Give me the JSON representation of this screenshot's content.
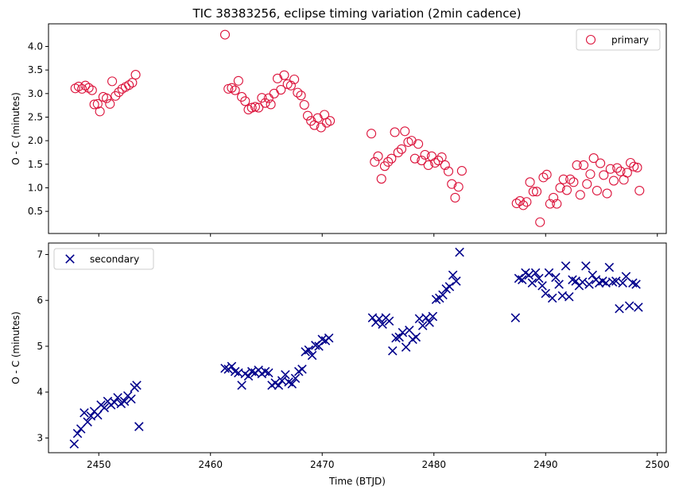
{
  "title": "TIC 38383256, eclipse timing variation (2min cadence)",
  "colors": {
    "primary": "#dc143c",
    "secondary": "#00008b"
  },
  "chart_data": [
    {
      "type": "scatter",
      "panel": "top",
      "ylabel": "O - C (minutes)",
      "xlabel": "",
      "xlim": [
        2445.5,
        2500.8
      ],
      "ylim": [
        0.03,
        4.48
      ],
      "yticks": [
        0.5,
        1.0,
        1.5,
        2.0,
        2.5,
        3.0,
        3.5,
        4.0
      ],
      "ytick_labels": [
        "0.5",
        "1.0",
        "1.5",
        "2.0",
        "2.5",
        "3.0",
        "3.5",
        "4.0"
      ],
      "xticks": [
        2450,
        2460,
        2470,
        2480,
        2490,
        2500
      ],
      "legend_position": "top-right",
      "series": [
        {
          "name": "primary",
          "marker": "open-circle",
          "color": "#dc143c",
          "points": [
            [
              2447.9,
              3.11
            ],
            [
              2448.2,
              3.15
            ],
            [
              2448.5,
              3.1
            ],
            [
              2448.8,
              3.17
            ],
            [
              2449.1,
              3.12
            ],
            [
              2449.4,
              3.07
            ],
            [
              2449.6,
              2.77
            ],
            [
              2449.9,
              2.78
            ],
            [
              2450.1,
              2.62
            ],
            [
              2450.4,
              2.93
            ],
            [
              2450.7,
              2.9
            ],
            [
              2451.0,
              2.78
            ],
            [
              2451.2,
              3.26
            ],
            [
              2451.5,
              2.95
            ],
            [
              2451.8,
              3.03
            ],
            [
              2452.1,
              3.1
            ],
            [
              2452.4,
              3.14
            ],
            [
              2452.7,
              3.18
            ],
            [
              2453.0,
              3.23
            ],
            [
              2453.3,
              3.4
            ],
            [
              2461.3,
              4.25
            ],
            [
              2461.6,
              3.1
            ],
            [
              2461.9,
              3.12
            ],
            [
              2462.2,
              3.07
            ],
            [
              2462.5,
              3.27
            ],
            [
              2462.8,
              2.93
            ],
            [
              2463.1,
              2.84
            ],
            [
              2463.4,
              2.66
            ],
            [
              2463.7,
              2.7
            ],
            [
              2464.0,
              2.72
            ],
            [
              2464.3,
              2.7
            ],
            [
              2464.6,
              2.91
            ],
            [
              2464.9,
              2.8
            ],
            [
              2465.2,
              2.9
            ],
            [
              2465.4,
              2.77
            ],
            [
              2465.7,
              3.0
            ],
            [
              2466.0,
              3.32
            ],
            [
              2466.3,
              3.08
            ],
            [
              2466.6,
              3.39
            ],
            [
              2466.9,
              3.2
            ],
            [
              2467.2,
              3.17
            ],
            [
              2467.5,
              3.3
            ],
            [
              2467.8,
              3.02
            ],
            [
              2468.1,
              2.96
            ],
            [
              2468.4,
              2.76
            ],
            [
              2468.7,
              2.53
            ],
            [
              2469.0,
              2.42
            ],
            [
              2469.3,
              2.33
            ],
            [
              2469.6,
              2.48
            ],
            [
              2469.9,
              2.28
            ],
            [
              2470.2,
              2.55
            ],
            [
              2470.4,
              2.38
            ],
            [
              2470.7,
              2.42
            ],
            [
              2474.4,
              2.15
            ],
            [
              2474.7,
              1.55
            ],
            [
              2475.0,
              1.67
            ],
            [
              2475.3,
              1.19
            ],
            [
              2475.6,
              1.46
            ],
            [
              2475.9,
              1.55
            ],
            [
              2476.2,
              1.62
            ],
            [
              2476.5,
              2.18
            ],
            [
              2476.8,
              1.75
            ],
            [
              2477.1,
              1.82
            ],
            [
              2477.4,
              2.2
            ],
            [
              2477.7,
              1.97
            ],
            [
              2478.0,
              2.0
            ],
            [
              2478.3,
              1.62
            ],
            [
              2478.6,
              1.93
            ],
            [
              2478.9,
              1.58
            ],
            [
              2479.2,
              1.7
            ],
            [
              2479.5,
              1.48
            ],
            [
              2479.8,
              1.67
            ],
            [
              2480.1,
              1.53
            ],
            [
              2480.4,
              1.58
            ],
            [
              2480.7,
              1.65
            ],
            [
              2481.0,
              1.48
            ],
            [
              2481.3,
              1.35
            ],
            [
              2481.6,
              1.08
            ],
            [
              2481.9,
              0.79
            ],
            [
              2482.2,
              1.02
            ],
            [
              2482.5,
              1.36
            ],
            [
              2487.4,
              0.67
            ],
            [
              2487.7,
              0.72
            ],
            [
              2488.0,
              0.63
            ],
            [
              2488.3,
              0.7
            ],
            [
              2488.6,
              1.12
            ],
            [
              2488.9,
              0.92
            ],
            [
              2489.2,
              0.92
            ],
            [
              2489.5,
              0.27
            ],
            [
              2489.8,
              1.22
            ],
            [
              2490.1,
              1.28
            ],
            [
              2490.4,
              0.66
            ],
            [
              2490.7,
              0.79
            ],
            [
              2491.0,
              0.66
            ],
            [
              2491.3,
              1.0
            ],
            [
              2491.6,
              1.18
            ],
            [
              2491.9,
              0.95
            ],
            [
              2492.2,
              1.18
            ],
            [
              2492.5,
              1.12
            ],
            [
              2492.8,
              1.48
            ],
            [
              2493.1,
              0.85
            ],
            [
              2493.4,
              1.48
            ],
            [
              2493.7,
              1.08
            ],
            [
              2494.0,
              1.29
            ],
            [
              2494.3,
              1.63
            ],
            [
              2494.6,
              0.94
            ],
            [
              2494.9,
              1.52
            ],
            [
              2495.2,
              1.27
            ],
            [
              2495.5,
              0.88
            ],
            [
              2495.8,
              1.4
            ],
            [
              2496.1,
              1.15
            ],
            [
              2496.4,
              1.42
            ],
            [
              2496.7,
              1.35
            ],
            [
              2497.0,
              1.17
            ],
            [
              2497.3,
              1.32
            ],
            [
              2497.6,
              1.53
            ],
            [
              2497.9,
              1.45
            ],
            [
              2498.2,
              1.43
            ],
            [
              2498.4,
              0.94
            ]
          ]
        }
      ]
    },
    {
      "type": "scatter",
      "panel": "bottom",
      "ylabel": "O - C (minutes)",
      "xlabel": "Time (BTJD)",
      "xlim": [
        2445.5,
        2500.8
      ],
      "ylim": [
        2.68,
        7.25
      ],
      "yticks": [
        3,
        4,
        5,
        6,
        7
      ],
      "ytick_labels": [
        "3",
        "4",
        "5",
        "6",
        "7"
      ],
      "xticks": [
        2450,
        2460,
        2470,
        2480,
        2490,
        2500
      ],
      "xtick_labels": [
        "2450",
        "2460",
        "2470",
        "2480",
        "2490",
        "2500"
      ],
      "legend_position": "top-left",
      "series": [
        {
          "name": "secondary",
          "marker": "x",
          "color": "#00008b",
          "points": [
            [
              2447.8,
              2.87
            ],
            [
              2448.1,
              3.1
            ],
            [
              2448.4,
              3.2
            ],
            [
              2448.7,
              3.55
            ],
            [
              2449.0,
              3.35
            ],
            [
              2449.3,
              3.48
            ],
            [
              2449.6,
              3.58
            ],
            [
              2449.9,
              3.5
            ],
            [
              2450.2,
              3.72
            ],
            [
              2450.5,
              3.66
            ],
            [
              2450.8,
              3.8
            ],
            [
              2451.1,
              3.72
            ],
            [
              2451.4,
              3.78
            ],
            [
              2451.7,
              3.88
            ],
            [
              2452.0,
              3.75
            ],
            [
              2452.3,
              3.8
            ],
            [
              2452.6,
              3.92
            ],
            [
              2452.9,
              3.85
            ],
            [
              2453.2,
              4.1
            ],
            [
              2453.4,
              4.15
            ],
            [
              2453.6,
              3.25
            ],
            [
              2461.3,
              4.52
            ],
            [
              2461.6,
              4.5
            ],
            [
              2461.9,
              4.56
            ],
            [
              2462.2,
              4.45
            ],
            [
              2462.5,
              4.42
            ],
            [
              2462.8,
              4.15
            ],
            [
              2463.1,
              4.4
            ],
            [
              2463.4,
              4.35
            ],
            [
              2463.7,
              4.45
            ],
            [
              2464.0,
              4.42
            ],
            [
              2464.3,
              4.48
            ],
            [
              2464.6,
              4.4
            ],
            [
              2464.9,
              4.45
            ],
            [
              2465.2,
              4.42
            ],
            [
              2465.5,
              4.15
            ],
            [
              2465.8,
              4.2
            ],
            [
              2466.1,
              4.15
            ],
            [
              2466.4,
              4.25
            ],
            [
              2466.7,
              4.38
            ],
            [
              2467.0,
              4.22
            ],
            [
              2467.3,
              4.18
            ],
            [
              2467.6,
              4.3
            ],
            [
              2467.9,
              4.45
            ],
            [
              2468.2,
              4.5
            ],
            [
              2468.5,
              4.88
            ],
            [
              2468.8,
              4.92
            ],
            [
              2469.1,
              4.8
            ],
            [
              2469.4,
              5.02
            ],
            [
              2469.7,
              5.0
            ],
            [
              2470.0,
              5.15
            ],
            [
              2470.3,
              5.12
            ],
            [
              2470.6,
              5.18
            ],
            [
              2474.5,
              5.62
            ],
            [
              2474.8,
              5.52
            ],
            [
              2475.1,
              5.6
            ],
            [
              2475.4,
              5.48
            ],
            [
              2475.7,
              5.62
            ],
            [
              2476.0,
              5.55
            ],
            [
              2476.3,
              4.9
            ],
            [
              2476.6,
              5.18
            ],
            [
              2476.9,
              5.2
            ],
            [
              2477.2,
              5.3
            ],
            [
              2477.5,
              4.98
            ],
            [
              2477.8,
              5.35
            ],
            [
              2478.1,
              5.15
            ],
            [
              2478.4,
              5.2
            ],
            [
              2478.7,
              5.6
            ],
            [
              2479.0,
              5.45
            ],
            [
              2479.3,
              5.62
            ],
            [
              2479.6,
              5.52
            ],
            [
              2479.9,
              5.65
            ],
            [
              2480.2,
              6.02
            ],
            [
              2480.5,
              6.05
            ],
            [
              2480.8,
              6.12
            ],
            [
              2481.1,
              6.25
            ],
            [
              2481.4,
              6.3
            ],
            [
              2481.7,
              6.55
            ],
            [
              2482.0,
              6.42
            ],
            [
              2482.3,
              7.05
            ],
            [
              2487.3,
              5.62
            ],
            [
              2487.6,
              6.48
            ],
            [
              2487.9,
              6.45
            ],
            [
              2488.2,
              6.6
            ],
            [
              2488.5,
              6.55
            ],
            [
              2488.8,
              6.38
            ],
            [
              2489.1,
              6.6
            ],
            [
              2489.4,
              6.48
            ],
            [
              2489.7,
              6.32
            ],
            [
              2490.0,
              6.15
            ],
            [
              2490.3,
              6.6
            ],
            [
              2490.6,
              6.05
            ],
            [
              2490.9,
              6.5
            ],
            [
              2491.2,
              6.35
            ],
            [
              2491.5,
              6.1
            ],
            [
              2491.8,
              6.75
            ],
            [
              2492.1,
              6.08
            ],
            [
              2492.4,
              6.45
            ],
            [
              2492.7,
              6.42
            ],
            [
              2493.0,
              6.32
            ],
            [
              2493.3,
              6.4
            ],
            [
              2493.6,
              6.75
            ],
            [
              2493.9,
              6.35
            ],
            [
              2494.2,
              6.55
            ],
            [
              2494.5,
              6.45
            ],
            [
              2494.8,
              6.38
            ],
            [
              2495.1,
              6.42
            ],
            [
              2495.4,
              6.38
            ],
            [
              2495.7,
              6.72
            ],
            [
              2496.0,
              6.4
            ],
            [
              2496.3,
              6.42
            ],
            [
              2496.6,
              5.82
            ],
            [
              2496.9,
              6.38
            ],
            [
              2497.2,
              6.52
            ],
            [
              2497.5,
              5.88
            ],
            [
              2497.8,
              6.38
            ],
            [
              2498.1,
              6.35
            ],
            [
              2498.3,
              5.85
            ]
          ]
        }
      ]
    }
  ]
}
